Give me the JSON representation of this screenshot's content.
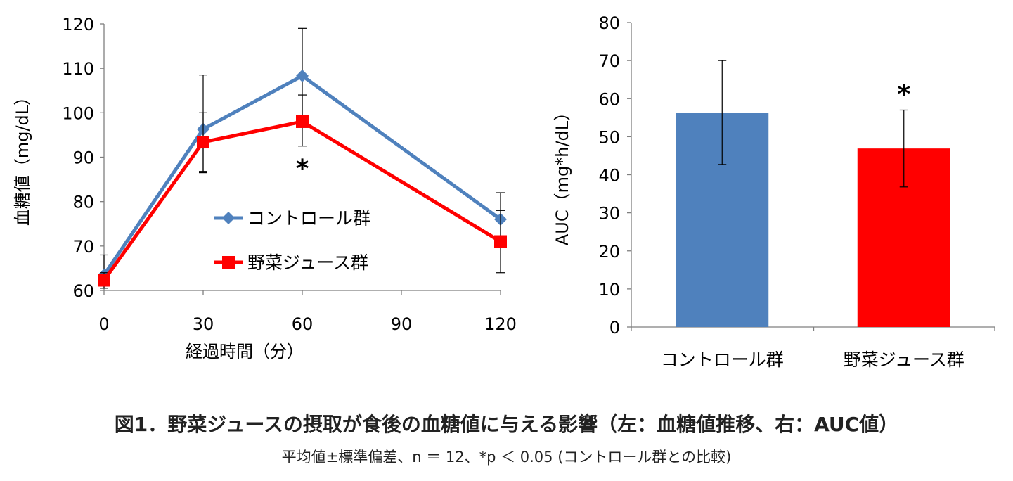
{
  "chart_data": [
    {
      "type": "line",
      "ylabel": "血糖値（mg/dL）",
      "xlabel": "経過時間（分）",
      "ylim": [
        60,
        120
      ],
      "yticks": [
        "60",
        "70",
        "80",
        "90",
        "100",
        "110",
        "120"
      ],
      "x": [
        0,
        30,
        60,
        120
      ],
      "xticks": [
        "0",
        "30",
        "60",
        "90",
        "120"
      ],
      "series": [
        {
          "name": "コントロール群",
          "color": "#4F81BD",
          "marker": "diamond",
          "values": [
            63.5,
            96.3,
            108.3,
            76
          ],
          "err_upper": [
            68,
            108.5,
            119,
            82
          ],
          "err_lower": [
            61,
            86.5,
            98,
            70
          ]
        },
        {
          "name": "野菜ジュース群",
          "color": "#FF0000",
          "marker": "square",
          "values": [
            62.3,
            93.4,
            98,
            71
          ],
          "err_upper": [
            64,
            100,
            104,
            78
          ],
          "err_lower": [
            60.5,
            86.8,
            92.5,
            64
          ]
        }
      ],
      "annotations": [
        {
          "text": "*",
          "x": 60
        }
      ],
      "legend_position": "center"
    },
    {
      "type": "bar",
      "ylabel": "AUC（mg*h/dL）",
      "ylim": [
        0,
        80
      ],
      "yticks": [
        "0",
        "10",
        "20",
        "30",
        "40",
        "50",
        "60",
        "70",
        "80"
      ],
      "categories": [
        "コントロール群",
        "野菜ジュース群"
      ],
      "values": [
        56.3,
        46.9
      ],
      "err_upper": [
        70,
        57
      ],
      "err_lower": [
        42.7,
        36.8
      ],
      "colors": [
        "#4F81BD",
        "#FF0000"
      ],
      "annotations": [
        {
          "text": "*",
          "category": "野菜ジュース群"
        }
      ]
    }
  ],
  "caption": {
    "title": "図1．野菜ジュースの摂取が食後の血糖値に与える影響（左：血糖値推移、右：AUC値）",
    "note": "平均値±標準偏差、n ＝ 12、*p ＜ 0.05 (コントロール群との比較)"
  }
}
